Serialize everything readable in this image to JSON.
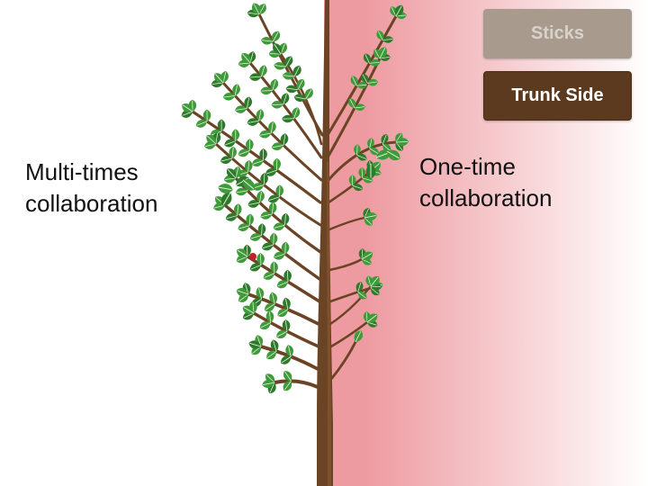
{
  "labels": {
    "left": [
      "Multi-times",
      "collaboration"
    ],
    "right": [
      "One-time",
      "collaboration"
    ]
  },
  "buttons": {
    "sticks": "Sticks",
    "trunk_side": "Trunk Side"
  },
  "colors": {
    "trunk": "#6b4425",
    "trunk_highlight": "#8a5a30",
    "leaf": "#3f9a3a",
    "leaf_dark": "#2d7a2b",
    "highlight_gradient_start": "#ed9aa0",
    "highlight_gradient_end": "#ffffff",
    "berry": "#c0212a",
    "button_sticks": "#a89b8e",
    "button_trunk": "#5b3a1f"
  },
  "icons": {
    "tree": "tree-illustration",
    "leaf": "leaf-icon",
    "berry": "berry-icon"
  },
  "diagram": {
    "highlighted_side": "right",
    "left_branch_count": 13,
    "right_branch_count": 10
  }
}
